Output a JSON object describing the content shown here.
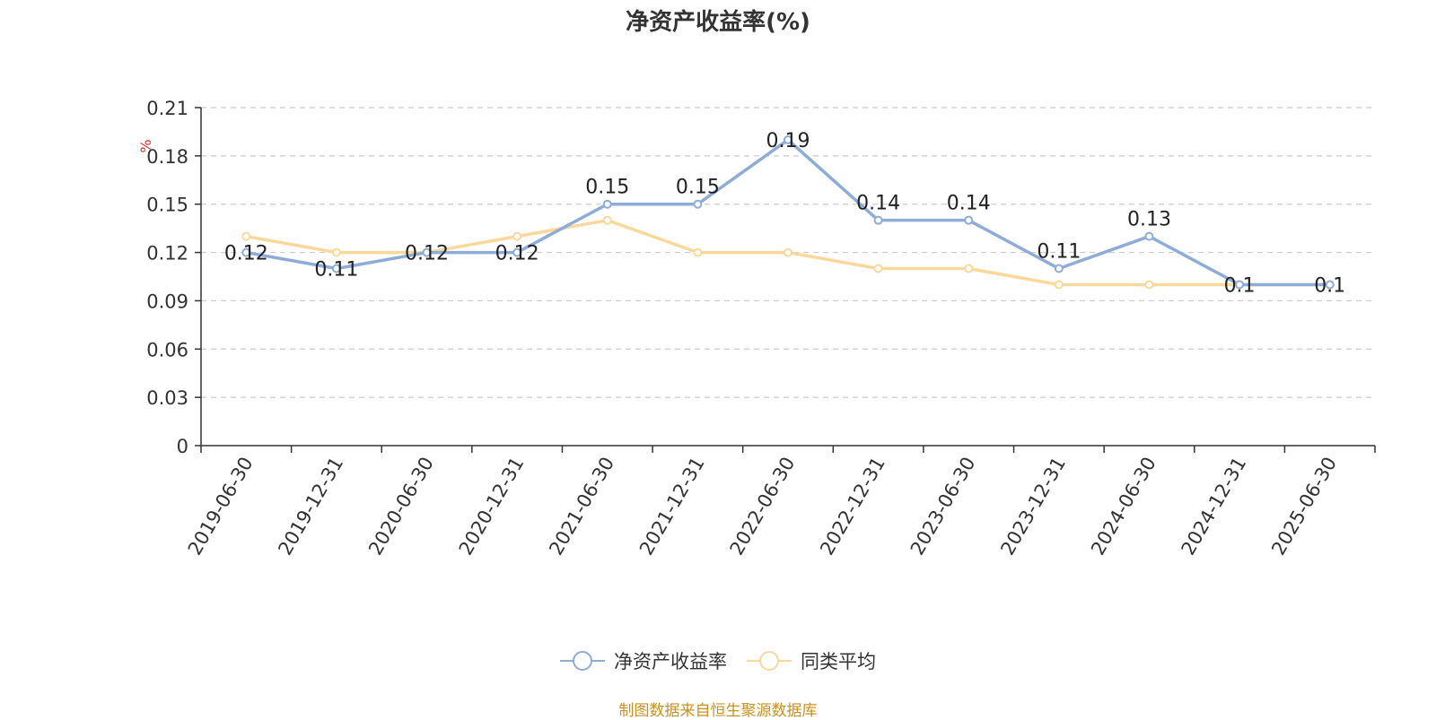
{
  "chart_data": {
    "type": "line",
    "title": "净资产收益率(%)",
    "ylabel": "%",
    "xlabel": "",
    "categories": [
      "2019-06-30",
      "2019-12-31",
      "2020-06-30",
      "2020-12-31",
      "2021-06-30",
      "2021-12-31",
      "2022-06-30",
      "2022-12-31",
      "2023-06-30",
      "2023-12-31",
      "2024-06-30",
      "2024-12-31",
      "2025-06-30"
    ],
    "ylim": [
      0,
      0.21
    ],
    "yticks": [
      "0",
      "0.03",
      "0.06",
      "0.09",
      "0.12",
      "0.15",
      "0.18",
      "0.21"
    ],
    "grid": true,
    "legend_position": "bottom-center",
    "series": [
      {
        "name": "净资产收益率",
        "color": "#8eacd8",
        "values": [
          0.12,
          0.11,
          0.12,
          0.12,
          0.15,
          0.15,
          0.19,
          0.14,
          0.14,
          0.11,
          0.13,
          0.1,
          0.1
        ],
        "data_labels": [
          "0.12",
          "0.11",
          "0.12",
          "0.12",
          "0.15",
          "0.15",
          "0.19",
          "0.14",
          "0.14",
          "0.11",
          "0.13",
          "0.1",
          "0.1"
        ]
      },
      {
        "name": "同类平均",
        "color": "#f9d99b",
        "values": [
          0.13,
          0.12,
          0.12,
          0.13,
          0.14,
          0.12,
          0.12,
          0.11,
          0.11,
          0.1,
          0.1,
          0.1,
          0.1
        ]
      }
    ]
  },
  "source_note": "制图数据来自恒生聚源数据库"
}
